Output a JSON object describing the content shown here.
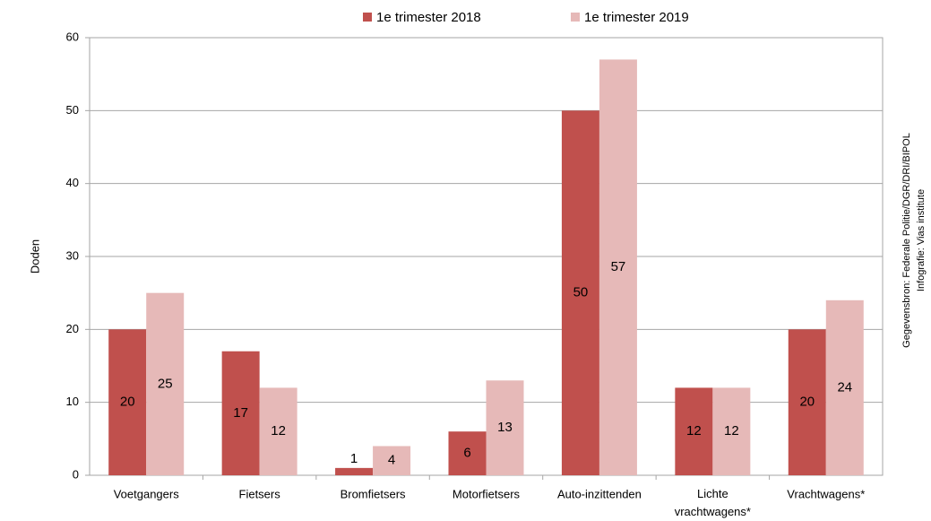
{
  "chart_data": {
    "type": "bar",
    "y_label": "Doden",
    "categories": [
      "Voetgangers",
      "Fietsers",
      "Bromfietsers",
      "Motorfietsers",
      "Auto-inzittenden",
      "Lichte vrachtwagens*",
      "Vrachtwagens*"
    ],
    "series": [
      {
        "name": "1e trimester 2018",
        "color": "#c0504d",
        "values": [
          20,
          17,
          1,
          6,
          50,
          12,
          20
        ]
      },
      {
        "name": "1e trimester 2019",
        "color": "#e6b9b8",
        "values": [
          25,
          12,
          4,
          13,
          57,
          12,
          24
        ]
      }
    ],
    "ylim": [
      0,
      60
    ],
    "yticks": [
      0,
      10,
      20,
      30,
      40,
      50,
      60
    ],
    "grid": true,
    "legend": "top",
    "source": [
      "Gegevensbron: Federale Politie/DGR/DRI/BIPOL",
      "Infografie: Vias institute"
    ]
  }
}
